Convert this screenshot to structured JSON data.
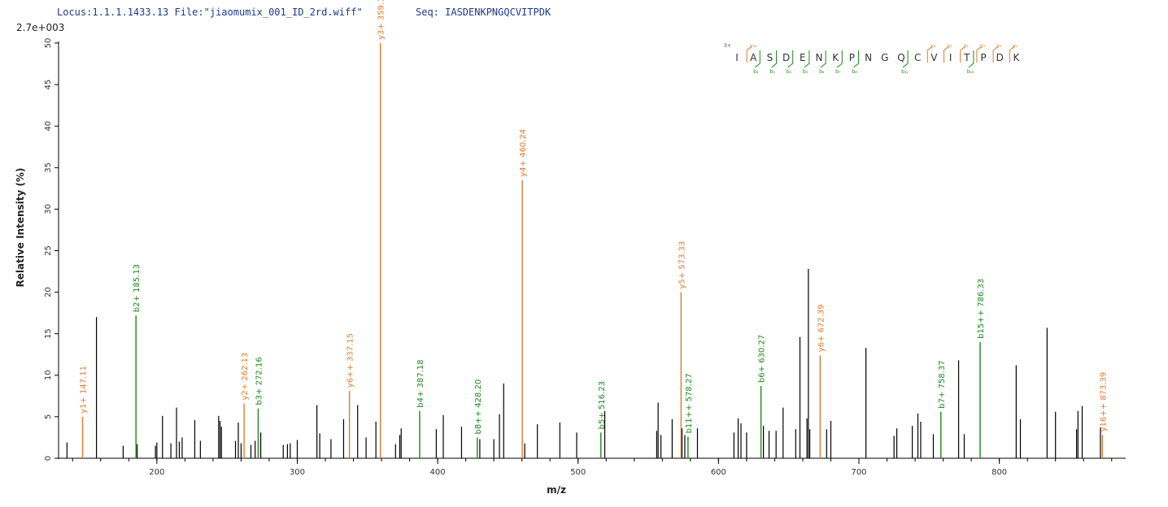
{
  "header": {
    "locus": "Locus:1.1.1.1433.13 File:\"jiaomumix_001_ID_2rd.wiff\"",
    "seq": "Seq: IASDENKPNGQCVITPDK"
  },
  "colors": {
    "y_ion": "#e07b2e",
    "b_ion": "#1a8a1a",
    "other": "#000000",
    "charge": "#1f3a8a"
  },
  "chart_data": {
    "type": "bar",
    "subtype": "mass-spectrum",
    "scale_label": "2.7e+003",
    "xlabel": "m/z",
    "ylabel": "Relative  Intensity (%)",
    "xlim": [
      130,
      890
    ],
    "ylim": [
      0,
      50
    ],
    "xticks": [
      200,
      300,
      400,
      500,
      600,
      700,
      800
    ],
    "yticks": [
      0,
      5,
      10,
      15,
      20,
      25,
      30,
      35,
      40,
      45,
      50
    ],
    "annotated_peaks": [
      {
        "mz": 147.11,
        "intensity": 5.0,
        "ion": "y",
        "label": "y1+ 147.11"
      },
      {
        "mz": 185.13,
        "intensity": 17.2,
        "ion": "b",
        "label": "b2+ 185.13"
      },
      {
        "mz": 262.13,
        "intensity": 6.6,
        "ion": "y",
        "label": "y2+ 262.13"
      },
      {
        "mz": 272.16,
        "intensity": 6.0,
        "ion": "b",
        "label": "b3+ 272.16"
      },
      {
        "mz": 337.15,
        "intensity": 8.1,
        "ion": "y",
        "label": "y6++ 337.15"
      },
      {
        "mz": 359.19,
        "intensity": 50.0,
        "ion": "y",
        "label": "y3+ 359.19"
      },
      {
        "mz": 387.18,
        "intensity": 5.7,
        "ion": "b",
        "label": "b4+ 387.18"
      },
      {
        "mz": 428.2,
        "intensity": 2.5,
        "ion": "b",
        "label": "b8++ 428.20"
      },
      {
        "mz": 460.24,
        "intensity": 33.5,
        "ion": "y",
        "label": "y4+ 460.24"
      },
      {
        "mz": 516.23,
        "intensity": 3.1,
        "ion": "b",
        "label": "b5+ 516.23"
      },
      {
        "mz": 573.33,
        "intensity": 20.0,
        "ion": "y",
        "label": "y5+ 573.33"
      },
      {
        "mz": 578.27,
        "intensity": 2.6,
        "ion": "b",
        "label": "b11++ 578.27"
      },
      {
        "mz": 630.27,
        "intensity": 8.7,
        "ion": "b",
        "label": "b6+ 630.27"
      },
      {
        "mz": 672.39,
        "intensity": 12.4,
        "ion": "y",
        "label": "y6+ 672.39"
      },
      {
        "mz": 758.37,
        "intensity": 5.6,
        "ion": "b",
        "label": "b7+ 758.37"
      },
      {
        "mz": 786.33,
        "intensity": 14.0,
        "ion": "b",
        "label": "b15++ 786.33"
      },
      {
        "mz": 873.39,
        "intensity": 2.8,
        "ion": "y",
        "label": "y16++ 873.39"
      }
    ],
    "other_peaks": [
      {
        "mz": 136,
        "intensity": 1.9
      },
      {
        "mz": 157,
        "intensity": 17.0
      },
      {
        "mz": 176,
        "intensity": 1.5
      },
      {
        "mz": 186,
        "intensity": 1.7
      },
      {
        "mz": 199,
        "intensity": 1.5
      },
      {
        "mz": 200,
        "intensity": 1.9
      },
      {
        "mz": 204,
        "intensity": 5.1
      },
      {
        "mz": 210,
        "intensity": 1.8
      },
      {
        "mz": 214,
        "intensity": 6.1
      },
      {
        "mz": 216,
        "intensity": 2.0
      },
      {
        "mz": 218,
        "intensity": 2.5
      },
      {
        "mz": 227,
        "intensity": 4.6
      },
      {
        "mz": 231,
        "intensity": 2.1
      },
      {
        "mz": 244,
        "intensity": 5.1
      },
      {
        "mz": 245,
        "intensity": 4.5
      },
      {
        "mz": 246,
        "intensity": 3.8
      },
      {
        "mz": 256,
        "intensity": 2.1
      },
      {
        "mz": 258,
        "intensity": 4.3
      },
      {
        "mz": 260,
        "intensity": 1.8
      },
      {
        "mz": 267,
        "intensity": 1.6
      },
      {
        "mz": 270,
        "intensity": 2.1
      },
      {
        "mz": 274,
        "intensity": 3.1
      },
      {
        "mz": 290,
        "intensity": 1.6
      },
      {
        "mz": 293,
        "intensity": 1.7
      },
      {
        "mz": 295,
        "intensity": 1.8
      },
      {
        "mz": 300,
        "intensity": 2.2
      },
      {
        "mz": 314,
        "intensity": 6.4
      },
      {
        "mz": 316,
        "intensity": 3.0
      },
      {
        "mz": 324,
        "intensity": 2.3
      },
      {
        "mz": 333,
        "intensity": 4.7
      },
      {
        "mz": 343,
        "intensity": 6.4
      },
      {
        "mz": 349,
        "intensity": 2.5
      },
      {
        "mz": 356,
        "intensity": 4.4
      },
      {
        "mz": 370,
        "intensity": 1.7
      },
      {
        "mz": 373,
        "intensity": 2.8
      },
      {
        "mz": 374,
        "intensity": 3.6
      },
      {
        "mz": 399,
        "intensity": 3.5
      },
      {
        "mz": 404,
        "intensity": 5.2
      },
      {
        "mz": 417,
        "intensity": 3.8
      },
      {
        "mz": 430,
        "intensity": 2.3
      },
      {
        "mz": 440,
        "intensity": 2.3
      },
      {
        "mz": 444,
        "intensity": 5.3
      },
      {
        "mz": 447,
        "intensity": 9.0
      },
      {
        "mz": 462,
        "intensity": 1.8
      },
      {
        "mz": 471,
        "intensity": 4.1
      },
      {
        "mz": 487,
        "intensity": 4.3
      },
      {
        "mz": 499,
        "intensity": 3.1
      },
      {
        "mz": 519,
        "intensity": 5.7
      },
      {
        "mz": 556,
        "intensity": 3.3
      },
      {
        "mz": 557,
        "intensity": 6.7
      },
      {
        "mz": 559,
        "intensity": 2.8
      },
      {
        "mz": 567,
        "intensity": 4.7
      },
      {
        "mz": 574,
        "intensity": 3.6
      },
      {
        "mz": 576,
        "intensity": 2.8
      },
      {
        "mz": 585,
        "intensity": 3.6
      },
      {
        "mz": 611,
        "intensity": 3.1
      },
      {
        "mz": 614,
        "intensity": 4.8
      },
      {
        "mz": 616,
        "intensity": 4.2
      },
      {
        "mz": 620,
        "intensity": 3.1
      },
      {
        "mz": 632,
        "intensity": 3.9
      },
      {
        "mz": 636,
        "intensity": 3.3
      },
      {
        "mz": 641,
        "intensity": 3.3
      },
      {
        "mz": 646,
        "intensity": 6.1
      },
      {
        "mz": 655,
        "intensity": 3.5
      },
      {
        "mz": 658,
        "intensity": 14.6
      },
      {
        "mz": 663,
        "intensity": 4.8
      },
      {
        "mz": 664,
        "intensity": 22.8
      },
      {
        "mz": 665,
        "intensity": 3.5
      },
      {
        "mz": 677,
        "intensity": 3.5
      },
      {
        "mz": 680,
        "intensity": 4.5
      },
      {
        "mz": 705,
        "intensity": 13.3
      },
      {
        "mz": 725,
        "intensity": 2.7
      },
      {
        "mz": 727,
        "intensity": 3.6
      },
      {
        "mz": 738,
        "intensity": 3.9
      },
      {
        "mz": 742,
        "intensity": 5.4
      },
      {
        "mz": 744,
        "intensity": 4.4
      },
      {
        "mz": 753,
        "intensity": 2.9
      },
      {
        "mz": 771,
        "intensity": 11.8
      },
      {
        "mz": 775,
        "intensity": 2.9
      },
      {
        "mz": 812,
        "intensity": 11.2
      },
      {
        "mz": 815,
        "intensity": 4.7
      },
      {
        "mz": 834,
        "intensity": 15.7
      },
      {
        "mz": 840,
        "intensity": 5.6
      },
      {
        "mz": 855,
        "intensity": 3.5
      },
      {
        "mz": 856,
        "intensity": 5.7
      },
      {
        "mz": 859,
        "intensity": 6.3
      },
      {
        "mz": 872,
        "intensity": 3.7
      }
    ]
  },
  "sequence_map": {
    "charge": "3+",
    "residues": [
      "I",
      "A",
      "S",
      "D",
      "E",
      "N",
      "K",
      "P",
      "N",
      "G",
      "Q",
      "C",
      "V",
      "I",
      "T",
      "P",
      "D",
      "K"
    ],
    "y_labels": [
      "y₁₆",
      "y₆",
      "y₅",
      "y₄",
      "y₃",
      "y₂",
      "y₁"
    ],
    "b_labels": [
      "b₂",
      "b₃",
      "b₄",
      "b₅",
      "b₆",
      "b₇",
      "b₈",
      "b₁₁",
      "b₁₅"
    ],
    "y_after_index": [
      1,
      12,
      13,
      14,
      15,
      16,
      17
    ],
    "b_after_index": [
      1,
      2,
      3,
      4,
      5,
      6,
      7,
      10,
      14
    ]
  }
}
